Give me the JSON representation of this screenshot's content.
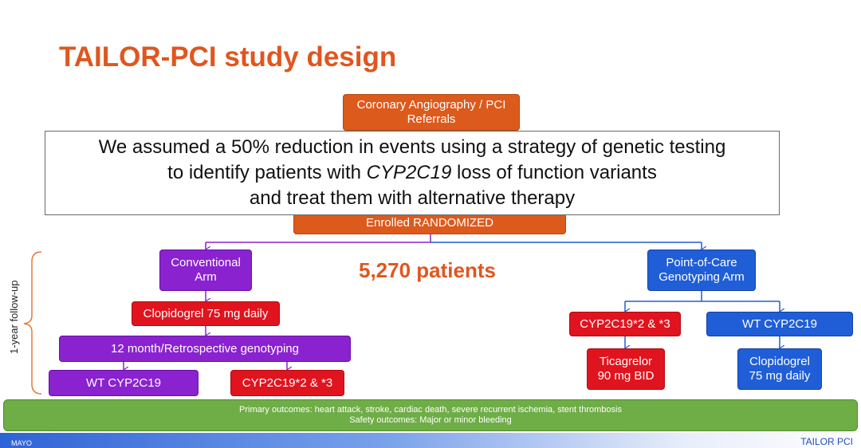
{
  "title": "TAILOR-PCI study design",
  "referrals": {
    "line1": "Coronary Angiography / PCI",
    "line2": "Referrals"
  },
  "callout": {
    "line1": "We assumed a 50% reduction in events using a strategy of genetic testing",
    "line2_pre": "to identify patients with ",
    "line2_gene": "CYP2C19",
    "line2_post": " loss of function variants",
    "line3": "and treat them with alternative therapy"
  },
  "enrolled": "Enrolled RANDOMIZED",
  "patients": "5,270 patients",
  "followup": "1-year follow-up",
  "conventional": {
    "arm_line1": "Conventional",
    "arm_line2": "Arm",
    "drug": "Clopidogrel 75 mg daily",
    "genotyping": "12 month/Retrospective genotyping",
    "wt": "WT CYP2C19",
    "lof": "CYP2C19*2 & *3"
  },
  "poc": {
    "arm_line1": "Point-of-Care",
    "arm_line2": "Genotyping Arm",
    "lof": "CYP2C19*2 & *3",
    "wt": "WT CYP2C19",
    "tica_line1": "Ticagrelor",
    "tica_line2": "90 mg BID",
    "clop_line1": "Clopidogrel",
    "clop_line2": "75 mg daily"
  },
  "outcomes": {
    "primary": "Primary outcomes: heart attack, stroke, cardiac death, severe recurrent ischemia, stent thrombosis",
    "safety": "Safety outcomes: Major or minor bleeding"
  },
  "footer": {
    "left": "MAYO",
    "right": "TAILOR PCI"
  },
  "colors": {
    "title": "#e0561f",
    "orange": "#dc5a1c",
    "purple": "#8a22cf",
    "red": "#e0141e",
    "blue": "#1f5ed6",
    "green": "#6fad46"
  }
}
